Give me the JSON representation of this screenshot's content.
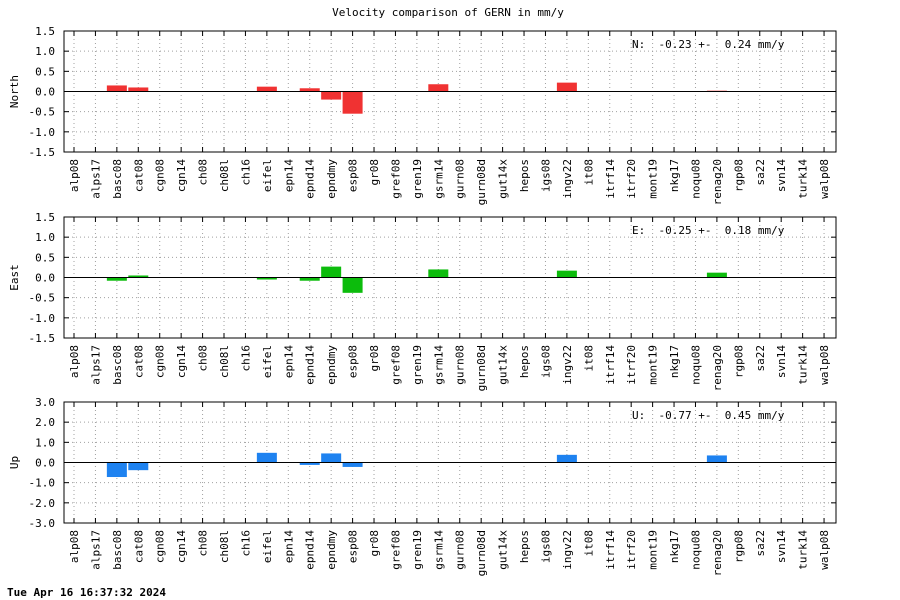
{
  "title": "Velocity comparison of GERN in mm/y",
  "timestamp": "Tue Apr 16 16:37:32 2024",
  "chart_data": [
    {
      "type": "bar",
      "component": "N",
      "ylabel": "North",
      "color": "#f03232",
      "ylim": [
        -1.5,
        1.5
      ],
      "yticks": [
        -1.5,
        -1.0,
        -0.5,
        0.0,
        0.5,
        1.0,
        1.5
      ],
      "ytick_labels": [
        "-1.5",
        "-1.0",
        "-0.5",
        "0.0",
        "0.5",
        "1.0",
        "1.5"
      ],
      "annotation": "N:  -0.23 +-  0.24 mm/y",
      "grid": true,
      "categories": [
        "alp08",
        "alps17",
        "basc08",
        "cat08",
        "cgn08",
        "cgn14",
        "ch08",
        "ch08l",
        "ch16",
        "eifel",
        "epn14",
        "epnd14",
        "epndmy",
        "esp08",
        "gr08",
        "gref08",
        "gren19",
        "gsrm14",
        "gurn08",
        "gurn08d",
        "gut14x",
        "hepos",
        "igs08",
        "ingv22",
        "it08",
        "itrf14",
        "itrf20",
        "mont19",
        "nkg17",
        "noqu08",
        "renag20",
        "rgp08",
        "sa22",
        "svn14",
        "turk14",
        "walp08"
      ],
      "values": [
        0,
        0,
        0.15,
        0.1,
        0,
        0,
        0,
        0,
        0,
        0.12,
        0,
        0.08,
        -0.2,
        -0.55,
        0,
        0,
        0,
        0.18,
        0,
        0,
        0,
        0,
        0,
        0.22,
        0,
        0,
        0,
        0,
        0,
        0,
        0.02,
        0,
        0,
        0,
        0,
        0
      ]
    },
    {
      "type": "bar",
      "component": "E",
      "ylabel": "East",
      "color": "#0cbc0c",
      "ylim": [
        -1.5,
        1.5
      ],
      "yticks": [
        -1.5,
        -1.0,
        -0.5,
        0.0,
        0.5,
        1.0,
        1.5
      ],
      "ytick_labels": [
        "-1.5",
        "-1.0",
        "-0.5",
        "0.0",
        "0.5",
        "1.0",
        "1.5"
      ],
      "annotation": "E:  -0.25 +-  0.18 mm/y",
      "grid": true,
      "categories": [
        "alp08",
        "alps17",
        "basc08",
        "cat08",
        "cgn08",
        "cgn14",
        "ch08",
        "ch08l",
        "ch16",
        "eifel",
        "epn14",
        "epnd14",
        "epndmy",
        "esp08",
        "gr08",
        "gref08",
        "gren19",
        "gsrm14",
        "gurn08",
        "gurn08d",
        "gut14x",
        "hepos",
        "igs08",
        "ingv22",
        "it08",
        "itrf14",
        "itrf20",
        "mont19",
        "nkg17",
        "noqu08",
        "renag20",
        "rgp08",
        "sa22",
        "svn14",
        "turk14",
        "walp08"
      ],
      "values": [
        0,
        0,
        -0.08,
        0.05,
        0,
        0,
        0,
        0,
        0,
        -0.05,
        0,
        -0.08,
        0.27,
        -0.38,
        0,
        0,
        0,
        0.2,
        0,
        0,
        0,
        0,
        0,
        0.17,
        0,
        0,
        0,
        0,
        0,
        0,
        0.12,
        0,
        0,
        0,
        0,
        0
      ]
    },
    {
      "type": "bar",
      "component": "U",
      "ylabel": "Up",
      "color": "#1e82f0",
      "ylim": [
        -3.0,
        3.0
      ],
      "yticks": [
        -3.0,
        -2.0,
        -1.0,
        0.0,
        1.0,
        2.0,
        3.0
      ],
      "ytick_labels": [
        "-3.0",
        "-2.0",
        "-1.0",
        "0.0",
        "1.0",
        "2.0",
        "3.0"
      ],
      "annotation": "U:  -0.77 +-  0.45 mm/y",
      "grid": true,
      "categories": [
        "alp08",
        "alps17",
        "basc08",
        "cat08",
        "cgn08",
        "cgn14",
        "ch08",
        "ch08l",
        "ch16",
        "eifel",
        "epn14",
        "epnd14",
        "epndmy",
        "esp08",
        "gr08",
        "gref08",
        "gren19",
        "gsrm14",
        "gurn08",
        "gurn08d",
        "gut14x",
        "hepos",
        "igs08",
        "ingv22",
        "it08",
        "itrf14",
        "itrf20",
        "mont19",
        "nkg17",
        "noqu08",
        "renag20",
        "rgp08",
        "sa22",
        "svn14",
        "turk14",
        "walp08"
      ],
      "values": [
        0,
        0,
        -0.72,
        -0.38,
        0,
        0,
        0,
        0,
        0,
        0.48,
        0,
        -0.12,
        0.45,
        -0.22,
        0,
        0,
        0,
        0,
        0,
        0,
        0,
        0,
        0,
        0.38,
        0,
        0,
        0,
        0,
        0,
        0,
        0.35,
        0,
        0,
        0,
        0,
        0
      ]
    }
  ]
}
